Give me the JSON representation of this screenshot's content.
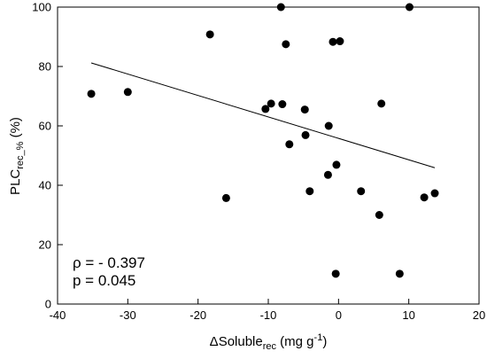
{
  "chart_data": {
    "type": "scatter",
    "title": "",
    "xlabel": {
      "prefix": "ΔSoluble",
      "sub": "rec",
      "unit": " (mg g",
      "sup": "-1",
      "close": ")"
    },
    "ylabel": {
      "prefix": "PLC",
      "sub": "rec_%",
      "suffix": " (%)"
    },
    "xlim": [
      -40,
      20
    ],
    "ylim": [
      0,
      100
    ],
    "xticks": [
      -40,
      -30,
      -20,
      -10,
      0,
      10,
      20
    ],
    "yticks": [
      0,
      20,
      40,
      60,
      80,
      100
    ],
    "grid": false,
    "points": [
      {
        "x": -35.2,
        "y": 70.8
      },
      {
        "x": -30.0,
        "y": 71.4
      },
      {
        "x": -18.3,
        "y": 90.8
      },
      {
        "x": -16.0,
        "y": 35.7
      },
      {
        "x": -10.4,
        "y": 65.7
      },
      {
        "x": -9.6,
        "y": 67.5
      },
      {
        "x": -8.2,
        "y": 100.0
      },
      {
        "x": -8.0,
        "y": 67.3
      },
      {
        "x": -7.5,
        "y": 87.5
      },
      {
        "x": -7.0,
        "y": 53.8
      },
      {
        "x": -4.8,
        "y": 65.5
      },
      {
        "x": -4.7,
        "y": 56.9
      },
      {
        "x": -4.1,
        "y": 38.0
      },
      {
        "x": -1.4,
        "y": 60.0
      },
      {
        "x": -1.5,
        "y": 43.5
      },
      {
        "x": -0.8,
        "y": 88.3
      },
      {
        "x": 0.2,
        "y": 88.5
      },
      {
        "x": -0.3,
        "y": 46.9
      },
      {
        "x": -0.4,
        "y": 10.2
      },
      {
        "x": 3.2,
        "y": 38.0
      },
      {
        "x": 5.8,
        "y": 30.0
      },
      {
        "x": 6.1,
        "y": 67.5
      },
      {
        "x": 8.7,
        "y": 10.2
      },
      {
        "x": 10.1,
        "y": 100.0
      },
      {
        "x": 12.2,
        "y": 35.9
      },
      {
        "x": 13.7,
        "y": 37.3
      }
    ],
    "fit_line": {
      "x": [
        -35.2,
        13.7
      ],
      "y": [
        81.2,
        45.9
      ]
    },
    "annotations": [
      "ρ = - 0.397",
      "p = 0.045"
    ]
  }
}
